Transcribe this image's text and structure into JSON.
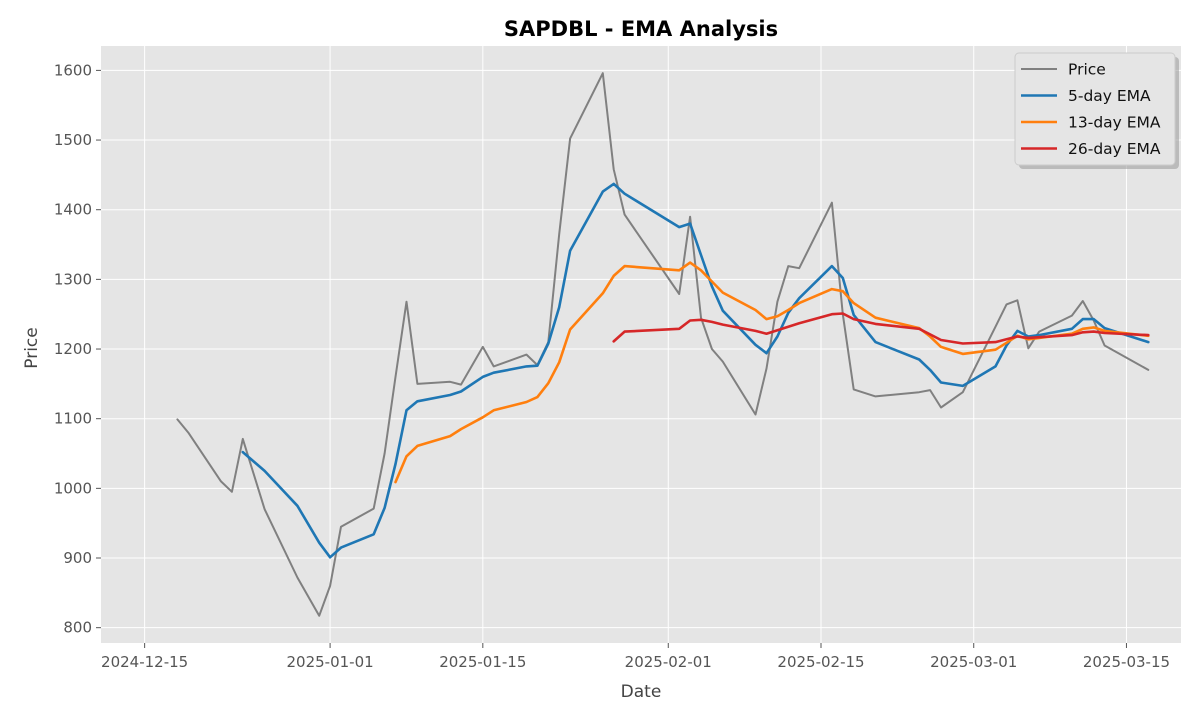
{
  "chart_data": {
    "type": "line",
    "title": "SAPDBL - EMA Analysis",
    "xlabel": "Date",
    "ylabel": "Price",
    "x_ticks": [
      "2024-12-15",
      "2025-01-01",
      "2025-01-15",
      "2025-02-01",
      "2025-02-15",
      "2025-03-01",
      "2025-03-15"
    ],
    "y_ticks": [
      800,
      900,
      1000,
      1100,
      1200,
      1300,
      1400,
      1500,
      1600
    ],
    "xlim": [
      "2024-12-11",
      "2025-03-20"
    ],
    "ylim": [
      778,
      1635
    ],
    "grid": true,
    "legend_position": "top-right",
    "series": [
      {
        "name": "Price",
        "color": "#808080",
        "points": [
          [
            "2024-12-18",
            1099
          ],
          [
            "2024-12-19",
            1080
          ],
          [
            "2024-12-22",
            1010
          ],
          [
            "2024-12-23",
            995
          ],
          [
            "2024-12-24",
            1071
          ],
          [
            "2024-12-26",
            970
          ],
          [
            "2024-12-29",
            872
          ],
          [
            "2024-12-31",
            817
          ],
          [
            "2025-01-01",
            860
          ],
          [
            "2025-01-02",
            945
          ],
          [
            "2025-01-05",
            971
          ],
          [
            "2025-01-06",
            1050
          ],
          [
            "2025-01-07",
            1160
          ],
          [
            "2025-01-08",
            1268
          ],
          [
            "2025-01-09",
            1150
          ],
          [
            "2025-01-12",
            1153
          ],
          [
            "2025-01-13",
            1149
          ],
          [
            "2025-01-15",
            1203
          ],
          [
            "2025-01-16",
            1175
          ],
          [
            "2025-01-19",
            1192
          ],
          [
            "2025-01-20",
            1177
          ],
          [
            "2025-01-21",
            1210
          ],
          [
            "2025-01-22",
            1365
          ],
          [
            "2025-01-23",
            1502
          ],
          [
            "2025-01-26",
            1596
          ],
          [
            "2025-01-27",
            1458
          ],
          [
            "2025-01-28",
            1393
          ],
          [
            "2025-02-02",
            1279
          ],
          [
            "2025-02-03",
            1390
          ],
          [
            "2025-02-04",
            1245
          ],
          [
            "2025-02-05",
            1200
          ],
          [
            "2025-02-06",
            1182
          ],
          [
            "2025-02-09",
            1106
          ],
          [
            "2025-02-10",
            1172
          ],
          [
            "2025-02-11",
            1268
          ],
          [
            "2025-02-12",
            1319
          ],
          [
            "2025-02-13",
            1316
          ],
          [
            "2025-02-16",
            1410
          ],
          [
            "2025-02-17",
            1250
          ],
          [
            "2025-02-18",
            1142
          ],
          [
            "2025-02-20",
            1132
          ],
          [
            "2025-02-24",
            1138
          ],
          [
            "2025-02-25",
            1141
          ],
          [
            "2025-02-26",
            1116
          ],
          [
            "2025-02-28",
            1138
          ],
          [
            "2025-03-03",
            1232
          ],
          [
            "2025-03-04",
            1264
          ],
          [
            "2025-03-05",
            1270
          ],
          [
            "2025-03-06",
            1201
          ],
          [
            "2025-03-07",
            1225
          ],
          [
            "2025-03-10",
            1248
          ],
          [
            "2025-03-11",
            1269
          ],
          [
            "2025-03-12",
            1241
          ],
          [
            "2025-03-13",
            1205
          ],
          [
            "2025-03-17",
            1170
          ]
        ]
      },
      {
        "name": "5-day EMA",
        "color": "#1f77b4",
        "points": [
          [
            "2024-12-24",
            1052
          ],
          [
            "2024-12-26",
            1025
          ],
          [
            "2024-12-29",
            975
          ],
          [
            "2024-12-31",
            922
          ],
          [
            "2025-01-01",
            901
          ],
          [
            "2025-01-02",
            915
          ],
          [
            "2025-01-05",
            934
          ],
          [
            "2025-01-06",
            972
          ],
          [
            "2025-01-07",
            1035
          ],
          [
            "2025-01-08",
            1112
          ],
          [
            "2025-01-09",
            1125
          ],
          [
            "2025-01-12",
            1134
          ],
          [
            "2025-01-13",
            1139
          ],
          [
            "2025-01-15",
            1160
          ],
          [
            "2025-01-16",
            1166
          ],
          [
            "2025-01-19",
            1175
          ],
          [
            "2025-01-20",
            1176
          ],
          [
            "2025-01-21",
            1208
          ],
          [
            "2025-01-22",
            1260
          ],
          [
            "2025-01-23",
            1341
          ],
          [
            "2025-01-26",
            1426
          ],
          [
            "2025-01-27",
            1437
          ],
          [
            "2025-01-28",
            1423
          ],
          [
            "2025-02-02",
            1375
          ],
          [
            "2025-02-03",
            1380
          ],
          [
            "2025-02-04",
            1335
          ],
          [
            "2025-02-05",
            1290
          ],
          [
            "2025-02-06",
            1255
          ],
          [
            "2025-02-09",
            1206
          ],
          [
            "2025-02-10",
            1194
          ],
          [
            "2025-02-11",
            1218
          ],
          [
            "2025-02-12",
            1252
          ],
          [
            "2025-02-13",
            1273
          ],
          [
            "2025-02-16",
            1319
          ],
          [
            "2025-02-17",
            1302
          ],
          [
            "2025-02-18",
            1249
          ],
          [
            "2025-02-20",
            1210
          ],
          [
            "2025-02-24",
            1185
          ],
          [
            "2025-02-25",
            1170
          ],
          [
            "2025-02-26",
            1152
          ],
          [
            "2025-02-28",
            1147
          ],
          [
            "2025-03-03",
            1175
          ],
          [
            "2025-03-04",
            1205
          ],
          [
            "2025-03-05",
            1226
          ],
          [
            "2025-03-06",
            1218
          ],
          [
            "2025-03-07",
            1220
          ],
          [
            "2025-03-10",
            1229
          ],
          [
            "2025-03-11",
            1243
          ],
          [
            "2025-03-12",
            1243
          ],
          [
            "2025-03-13",
            1230
          ],
          [
            "2025-03-17",
            1210
          ]
        ]
      },
      {
        "name": "13-day EMA",
        "color": "#ff7f0e",
        "points": [
          [
            "2025-01-07",
            1009
          ],
          [
            "2025-01-08",
            1046
          ],
          [
            "2025-01-09",
            1061
          ],
          [
            "2025-01-12",
            1075
          ],
          [
            "2025-01-13",
            1085
          ],
          [
            "2025-01-15",
            1102
          ],
          [
            "2025-01-16",
            1112
          ],
          [
            "2025-01-19",
            1124
          ],
          [
            "2025-01-20",
            1131
          ],
          [
            "2025-01-21",
            1151
          ],
          [
            "2025-01-22",
            1181
          ],
          [
            "2025-01-23",
            1228
          ],
          [
            "2025-01-26",
            1280
          ],
          [
            "2025-01-27",
            1305
          ],
          [
            "2025-01-28",
            1319
          ],
          [
            "2025-02-02",
            1313
          ],
          [
            "2025-02-03",
            1324
          ],
          [
            "2025-02-04",
            1313
          ],
          [
            "2025-02-05",
            1297
          ],
          [
            "2025-02-06",
            1281
          ],
          [
            "2025-02-09",
            1256
          ],
          [
            "2025-02-10",
            1243
          ],
          [
            "2025-02-11",
            1247
          ],
          [
            "2025-02-12",
            1256
          ],
          [
            "2025-02-13",
            1266
          ],
          [
            "2025-02-16",
            1286
          ],
          [
            "2025-02-17",
            1283
          ],
          [
            "2025-02-18",
            1266
          ],
          [
            "2025-02-20",
            1245
          ],
          [
            "2025-02-24",
            1230
          ],
          [
            "2025-02-25",
            1218
          ],
          [
            "2025-02-26",
            1203
          ],
          [
            "2025-02-28",
            1193
          ],
          [
            "2025-03-03",
            1199
          ],
          [
            "2025-03-04",
            1209
          ],
          [
            "2025-03-05",
            1219
          ],
          [
            "2025-03-06",
            1214
          ],
          [
            "2025-03-07",
            1216
          ],
          [
            "2025-03-10",
            1222
          ],
          [
            "2025-03-11",
            1229
          ],
          [
            "2025-03-12",
            1231
          ],
          [
            "2025-03-13",
            1226
          ],
          [
            "2025-03-17",
            1219
          ]
        ]
      },
      {
        "name": "26-day EMA",
        "color": "#d62728",
        "points": [
          [
            "2025-01-27",
            1211
          ],
          [
            "2025-01-28",
            1225
          ],
          [
            "2025-02-02",
            1229
          ],
          [
            "2025-02-03",
            1241
          ],
          [
            "2025-02-04",
            1242
          ],
          [
            "2025-02-05",
            1239
          ],
          [
            "2025-02-06",
            1235
          ],
          [
            "2025-02-09",
            1226
          ],
          [
            "2025-02-10",
            1222
          ],
          [
            "2025-02-11",
            1227
          ],
          [
            "2025-02-12",
            1232
          ],
          [
            "2025-02-13",
            1237
          ],
          [
            "2025-02-16",
            1250
          ],
          [
            "2025-02-17",
            1251
          ],
          [
            "2025-02-18",
            1243
          ],
          [
            "2025-02-20",
            1236
          ],
          [
            "2025-02-24",
            1229
          ],
          [
            "2025-02-25",
            1221
          ],
          [
            "2025-02-26",
            1213
          ],
          [
            "2025-02-28",
            1208
          ],
          [
            "2025-03-03",
            1210
          ],
          [
            "2025-03-04",
            1214
          ],
          [
            "2025-03-05",
            1218
          ],
          [
            "2025-03-06",
            1216
          ],
          [
            "2025-03-07",
            1217
          ],
          [
            "2025-03-10",
            1220
          ],
          [
            "2025-03-11",
            1224
          ],
          [
            "2025-03-12",
            1225
          ],
          [
            "2025-03-13",
            1223
          ],
          [
            "2025-03-17",
            1220
          ]
        ]
      }
    ]
  }
}
